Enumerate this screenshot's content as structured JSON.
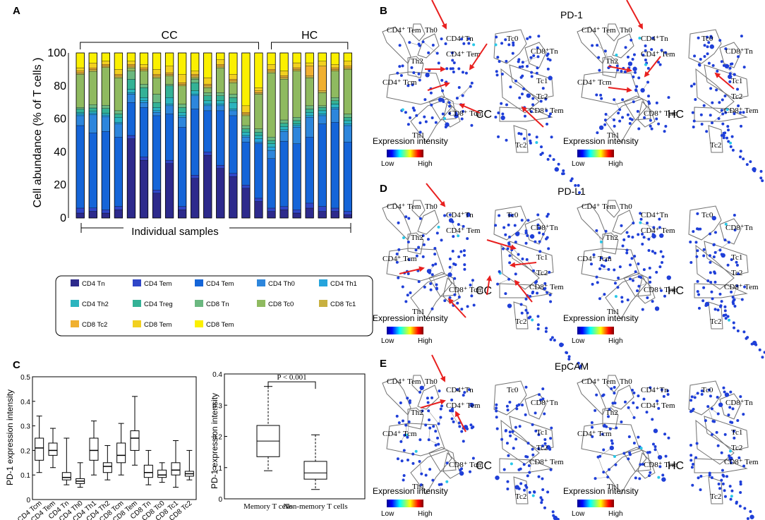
{
  "panels": {
    "A": "A",
    "B": "B",
    "C": "C",
    "D": "D",
    "E": "E"
  },
  "chart_data": [
    {
      "panel": "A",
      "type": "bar",
      "stacked": true,
      "ylabel": "Cell abundance (% of T cells )",
      "xlabel": "Individual samples",
      "ylim": [
        0,
        100
      ],
      "yticks": [
        0,
        20,
        40,
        60,
        80,
        100
      ],
      "groups": [
        {
          "label": "CC",
          "from": 0,
          "to": 14
        },
        {
          "label": "HC",
          "from": 15,
          "to": 21
        }
      ],
      "legend": [
        "CD4 Tn",
        "CD4 Tem",
        "CD4 Tem",
        "CD4 Th0",
        "CD4 Th1",
        "CD4 Th2",
        "CD4 Treg",
        "CD8 Tn",
        "CD8 Tc0",
        "CD8 Tc1",
        "CD8 Tc2",
        "CD8 Tem",
        "CD8 Tem"
      ],
      "colors": [
        "#2d2a8c",
        "#2f46c8",
        "#1565d8",
        "#2d86dc",
        "#25a4dc",
        "#2bb4be",
        "#34b296",
        "#6bb880",
        "#8fba60",
        "#c8b040",
        "#f0b030",
        "#f2d020",
        "#fbf000"
      ],
      "samples": [
        [
          3,
          3,
          50,
          6,
          1,
          1,
          2,
          1,
          20,
          1,
          1,
          2,
          9
        ],
        [
          4,
          2,
          45,
          11,
          1,
          1,
          2,
          2,
          20,
          1,
          1,
          3,
          6
        ],
        [
          3,
          2,
          48,
          9,
          1,
          1,
          3,
          2,
          23,
          1,
          1,
          2,
          5
        ],
        [
          5,
          2,
          42,
          8,
          1,
          3,
          2,
          2,
          20,
          1,
          1,
          3,
          10
        ],
        [
          48,
          2,
          20,
          5,
          1,
          2,
          6,
          5,
          2,
          1,
          1,
          2,
          5
        ],
        [
          35,
          2,
          30,
          3,
          1,
          2,
          6,
          2,
          8,
          1,
          1,
          2,
          7
        ],
        [
          15,
          2,
          45,
          2,
          1,
          2,
          3,
          5,
          10,
          1,
          1,
          3,
          10
        ],
        [
          33,
          2,
          28,
          5,
          1,
          4,
          7,
          1,
          5,
          1,
          1,
          4,
          8
        ],
        [
          5,
          2,
          48,
          6,
          1,
          2,
          3,
          2,
          11,
          1,
          1,
          5,
          13
        ],
        [
          24,
          2,
          40,
          8,
          1,
          2,
          5,
          2,
          1,
          1,
          1,
          2,
          11
        ],
        [
          38,
          2,
          25,
          3,
          1,
          2,
          3,
          2,
          3,
          1,
          1,
          4,
          15
        ],
        [
          30,
          2,
          33,
          3,
          1,
          2,
          3,
          2,
          15,
          1,
          1,
          3,
          4
        ],
        [
          25,
          2,
          35,
          3,
          1,
          4,
          3,
          2,
          7,
          1,
          1,
          3,
          13
        ],
        [
          18,
          2,
          26,
          3,
          1,
          2,
          2,
          2,
          6,
          1,
          1,
          4,
          32
        ],
        [
          10,
          2,
          33,
          1,
          2,
          2,
          2,
          2,
          21,
          1,
          1,
          2,
          21
        ],
        [
          4,
          2,
          30,
          5,
          2,
          2,
          2,
          2,
          39,
          1,
          1,
          3,
          7
        ],
        [
          5,
          2,
          40,
          6,
          1,
          2,
          2,
          2,
          25,
          1,
          1,
          3,
          11
        ],
        [
          3,
          2,
          40,
          10,
          1,
          1,
          2,
          2,
          28,
          1,
          1,
          3,
          6
        ],
        [
          6,
          3,
          40,
          12,
          1,
          2,
          2,
          2,
          17,
          1,
          6,
          2,
          6
        ],
        [
          4,
          3,
          50,
          5,
          1,
          2,
          2,
          1,
          8,
          1,
          15,
          3,
          5
        ],
        [
          4,
          2,
          52,
          8,
          1,
          2,
          2,
          2,
          16,
          1,
          1,
          2,
          7
        ],
        [
          2,
          2,
          42,
          10,
          1,
          2,
          2,
          2,
          27,
          1,
          1,
          3,
          5
        ]
      ]
    },
    {
      "panel": "C-left",
      "type": "boxplot",
      "ylabel": "PD-1 expression intensity",
      "ylim": [
        0,
        0.5
      ],
      "yticks": [
        0,
        0.1,
        0.2,
        0.3,
        0.4,
        0.5
      ],
      "categories": [
        "CD4 Tcm",
        "CD4 Tem",
        "CD4 Tn",
        "CD4 Th0",
        "CD4 Th1",
        "CD4 Th2",
        "CD8 Tcm",
        "CD8 Tem",
        "CD8 Tn",
        "CD8 Tc0",
        "CD8 Tc1",
        "CD8 Tc2"
      ],
      "boxes": [
        {
          "min": 0.11,
          "q1": 0.16,
          "median": 0.21,
          "q3": 0.25,
          "max": 0.34
        },
        {
          "min": 0.13,
          "q1": 0.18,
          "median": 0.2,
          "q3": 0.23,
          "max": 0.29
        },
        {
          "min": 0.06,
          "q1": 0.08,
          "median": 0.09,
          "q3": 0.11,
          "max": 0.25
        },
        {
          "min": 0.05,
          "q1": 0.065,
          "median": 0.075,
          "q3": 0.085,
          "max": 0.15
        },
        {
          "min": 0.1,
          "q1": 0.16,
          "median": 0.2,
          "q3": 0.25,
          "max": 0.32
        },
        {
          "min": 0.08,
          "q1": 0.11,
          "median": 0.135,
          "q3": 0.15,
          "max": 0.22
        },
        {
          "min": 0.1,
          "q1": 0.15,
          "median": 0.18,
          "q3": 0.23,
          "max": 0.31
        },
        {
          "min": 0.14,
          "q1": 0.2,
          "median": 0.25,
          "q3": 0.28,
          "max": 0.42
        },
        {
          "min": 0.06,
          "q1": 0.09,
          "median": 0.11,
          "q3": 0.14,
          "max": 0.2
        },
        {
          "min": 0.07,
          "q1": 0.09,
          "median": 0.1,
          "q3": 0.12,
          "max": 0.15
        },
        {
          "min": 0.05,
          "q1": 0.1,
          "median": 0.12,
          "q3": 0.15,
          "max": 0.24
        },
        {
          "min": 0.08,
          "q1": 0.095,
          "median": 0.105,
          "q3": 0.115,
          "max": 0.2
        }
      ]
    },
    {
      "panel": "C-right",
      "type": "boxplot",
      "ylabel": "PD-1 expression intensity",
      "ylim": [
        0,
        0.4
      ],
      "yticks": [
        0,
        0.1,
        0.2,
        0.3,
        0.4
      ],
      "categories": [
        "Memory T cells",
        "Non-memory T cells"
      ],
      "boxes": [
        {
          "min": 0.09,
          "q1": 0.135,
          "median": 0.185,
          "q3": 0.235,
          "max": 0.36
        },
        {
          "min": 0.03,
          "q1": 0.063,
          "median": 0.083,
          "q3": 0.12,
          "max": 0.205
        }
      ],
      "annotation": "P < 0.001"
    }
  ],
  "trees": {
    "B": {
      "title": "PD-1"
    },
    "D": {
      "title": "PD-L1"
    },
    "E": {
      "title": "EpCAM"
    },
    "conditions": [
      "CC",
      "HC"
    ],
    "labels": {
      "cd4_tem": "CD4⁺ Tem",
      "th0": "Th0",
      "cd4_tn": "CD4⁺Tn",
      "th2": "Th2",
      "cd4_tem2": "CD4⁺ Tem",
      "cd4_tcm": "CD4⁺ Tcm",
      "th1": "Th1",
      "cd8_tcm": "CD8⁺ Tcm",
      "tc0": "Tc0",
      "cd8_tn": "CD8⁺Tn",
      "tc1": "Tc1",
      "tc2": "Tc2",
      "cd8_tem": "CD8⁺ Tem",
      "tc2b": "Tc2"
    },
    "colorbar": {
      "title": "Expression intensity",
      "low": "Low",
      "high": "High"
    }
  },
  "colors": {
    "arrow": "#e8201f",
    "node": "#1f3fd8",
    "outline": "#707070"
  }
}
